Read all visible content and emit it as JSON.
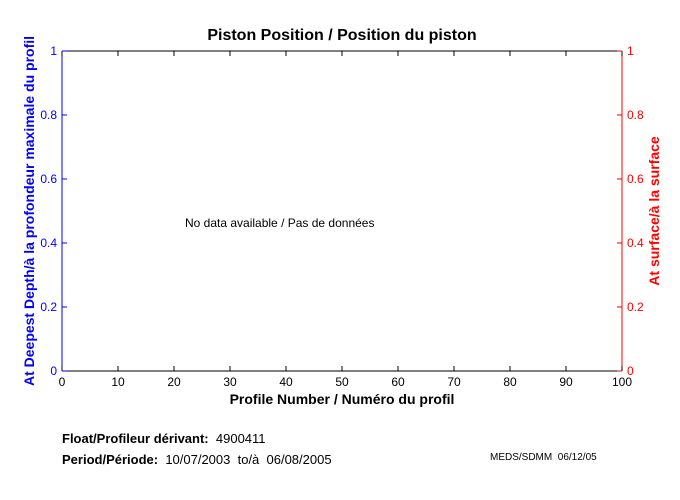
{
  "chart_data": {
    "type": "line",
    "title": "Piston Position / Position du piston",
    "xlabel": "Profile Number / Numéro du profil",
    "ylabel_left": "At Deepest Depth/à la profondeur maximale du profil",
    "ylabel_right": "At surface/à la surface",
    "xlim": [
      0,
      100
    ],
    "ylim_left": [
      0,
      1
    ],
    "ylim_right": [
      0,
      1
    ],
    "xticks": [
      0,
      10,
      20,
      30,
      40,
      50,
      60,
      70,
      80,
      90,
      100
    ],
    "yticks_left": [
      0,
      0.2,
      0.4,
      0.6,
      0.8,
      1
    ],
    "yticks_right": [
      0,
      0.2,
      0.4,
      0.6,
      0.8,
      1
    ],
    "annotation": "No data available / Pas de données",
    "series": [],
    "grid": false,
    "colors": {
      "left_axis": "#0000ff",
      "right_axis": "#ff0000",
      "axes": "#000000"
    }
  },
  "info": {
    "float_label": "Float/Profileur dérivant:",
    "float_value": "4900411",
    "period_label": "Period/Période:",
    "period_value": "10/07/2003  to/à  06/08/2005",
    "stamp": "MEDS/SDMM  06/12/05"
  }
}
